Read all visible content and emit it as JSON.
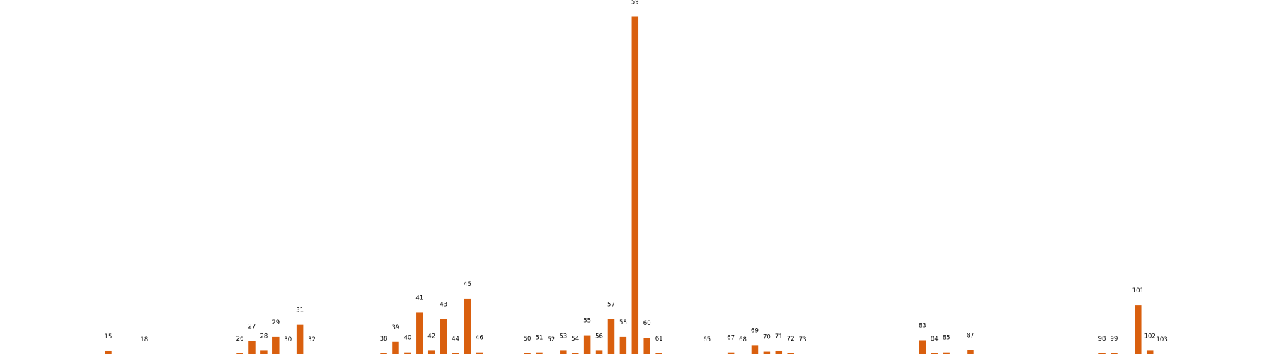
{
  "chart_data": {
    "type": "bar",
    "title": "",
    "xlabel": "",
    "ylabel": "",
    "axes_visible": false,
    "grid": false,
    "legend": "none",
    "bar_color": "#d95f0e",
    "x_range": [
      11,
      107
    ],
    "ylim": [
      0,
      41.5
    ],
    "categories": [
      15,
      18,
      26,
      27,
      28,
      29,
      30,
      31,
      32,
      38,
      39,
      40,
      41,
      42,
      43,
      44,
      45,
      46,
      50,
      51,
      52,
      53,
      54,
      55,
      56,
      57,
      58,
      59,
      60,
      61,
      65,
      67,
      68,
      69,
      70,
      71,
      72,
      73,
      83,
      84,
      85,
      87,
      98,
      99,
      101,
      102,
      103
    ],
    "values": [
      0.35,
      0,
      0.1,
      1.6,
      0.4,
      2.1,
      0,
      3.6,
      0,
      0.1,
      1.5,
      0.2,
      5.1,
      0.4,
      4.3,
      0.1,
      6.8,
      0.2,
      0.1,
      0.2,
      0,
      0.4,
      0.1,
      2.3,
      0.4,
      4.3,
      2.1,
      41.5,
      2.0,
      0.1,
      0,
      0.2,
      0,
      1.1,
      0.3,
      0.35,
      0.1,
      0,
      1.7,
      0.1,
      0.2,
      0.5,
      0.1,
      0.1,
      6.0,
      0.4,
      0
    ]
  }
}
